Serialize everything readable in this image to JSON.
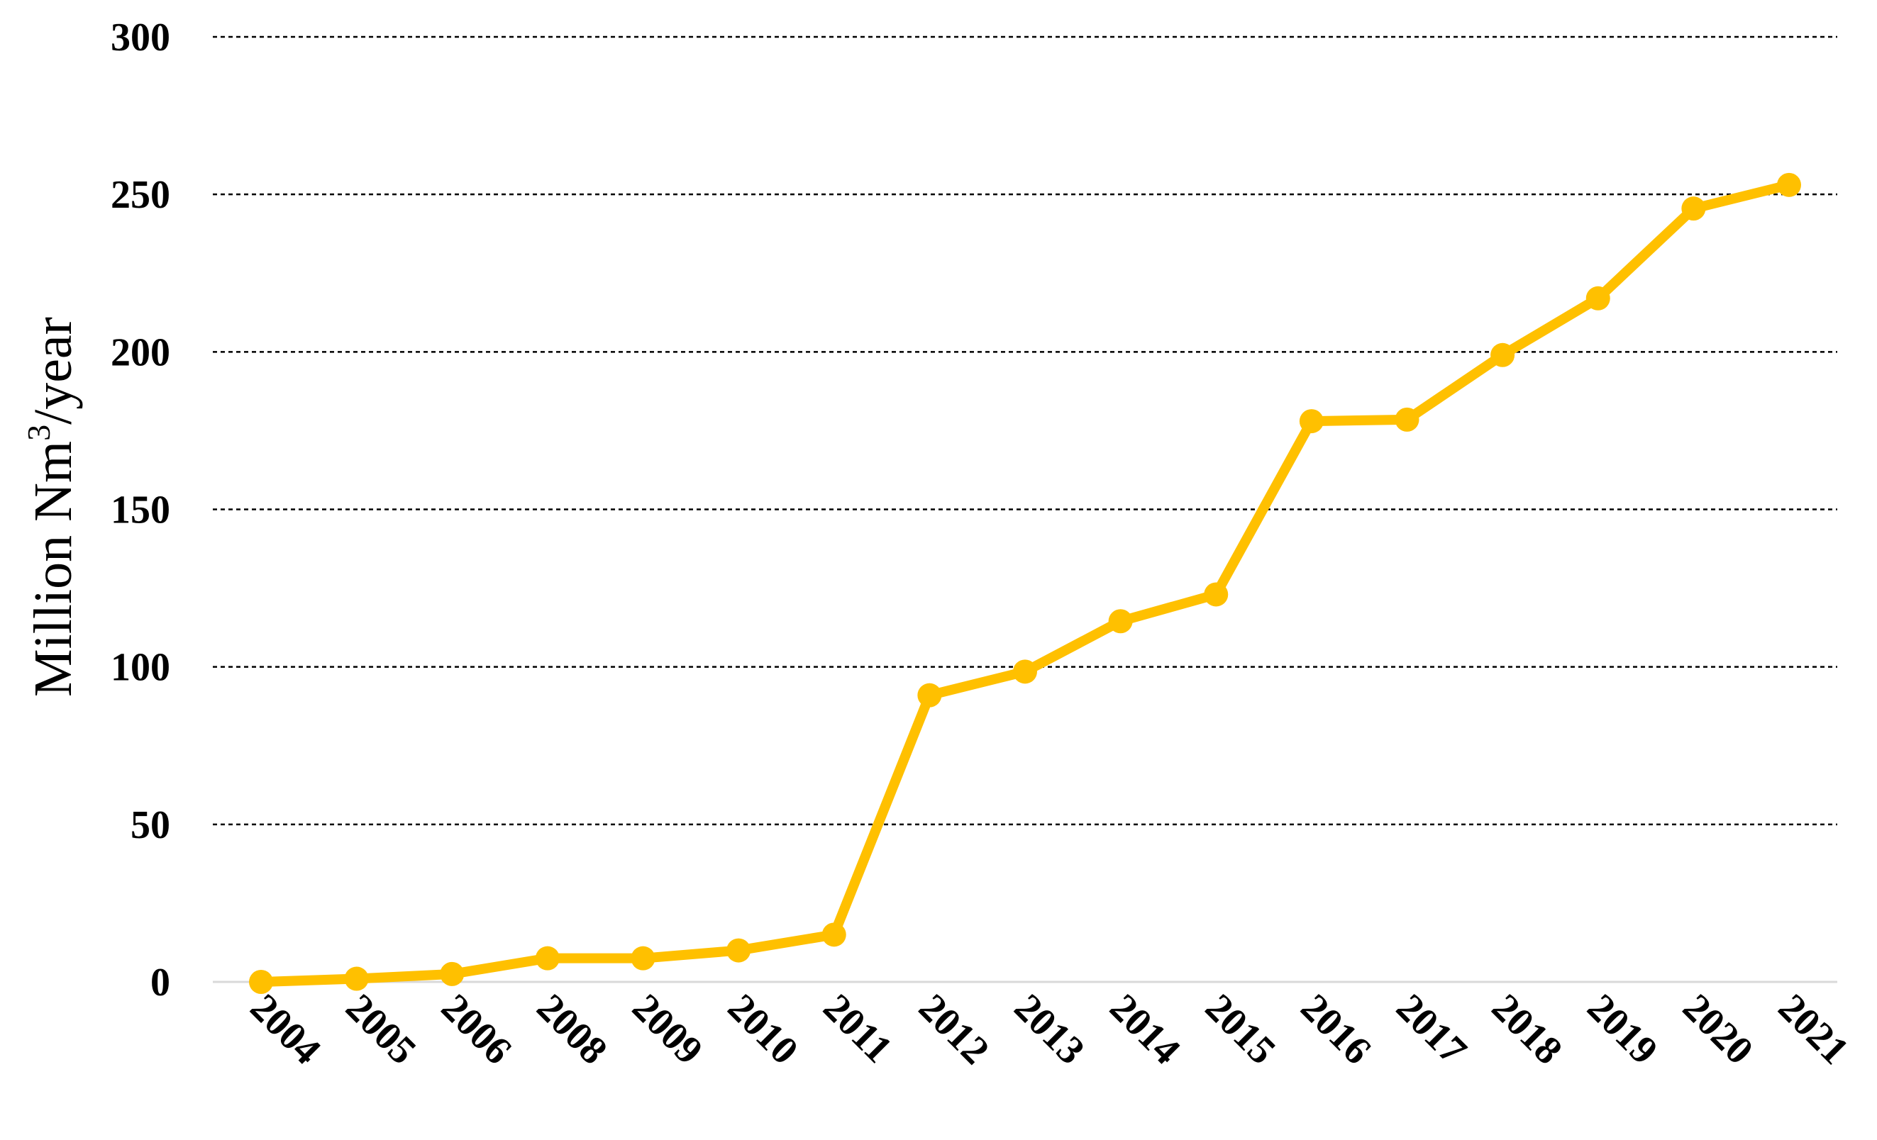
{
  "chart_data": {
    "type": "line",
    "title": "",
    "ylabel_main": "Million Nm",
    "ylabel_sup": "3",
    "ylabel_tail": "/year",
    "ylim": [
      0,
      300
    ],
    "yticks": [
      0,
      50,
      100,
      150,
      200,
      250,
      300
    ],
    "grid": "horizontal-dashed",
    "categories": [
      "2004",
      "2005",
      "2006",
      "2008",
      "2009",
      "2010",
      "2011",
      "2012",
      "2013",
      "2014",
      "2015",
      "2016",
      "2017",
      "2018",
      "2019",
      "2020",
      "2021"
    ],
    "series": [
      {
        "color": "#FFC000",
        "values": [
          0,
          1,
          2.5,
          7.5,
          7.5,
          10,
          15,
          91,
          98.5,
          114.5,
          123,
          178,
          178.5,
          199,
          217,
          245.5,
          253
        ]
      }
    ]
  }
}
